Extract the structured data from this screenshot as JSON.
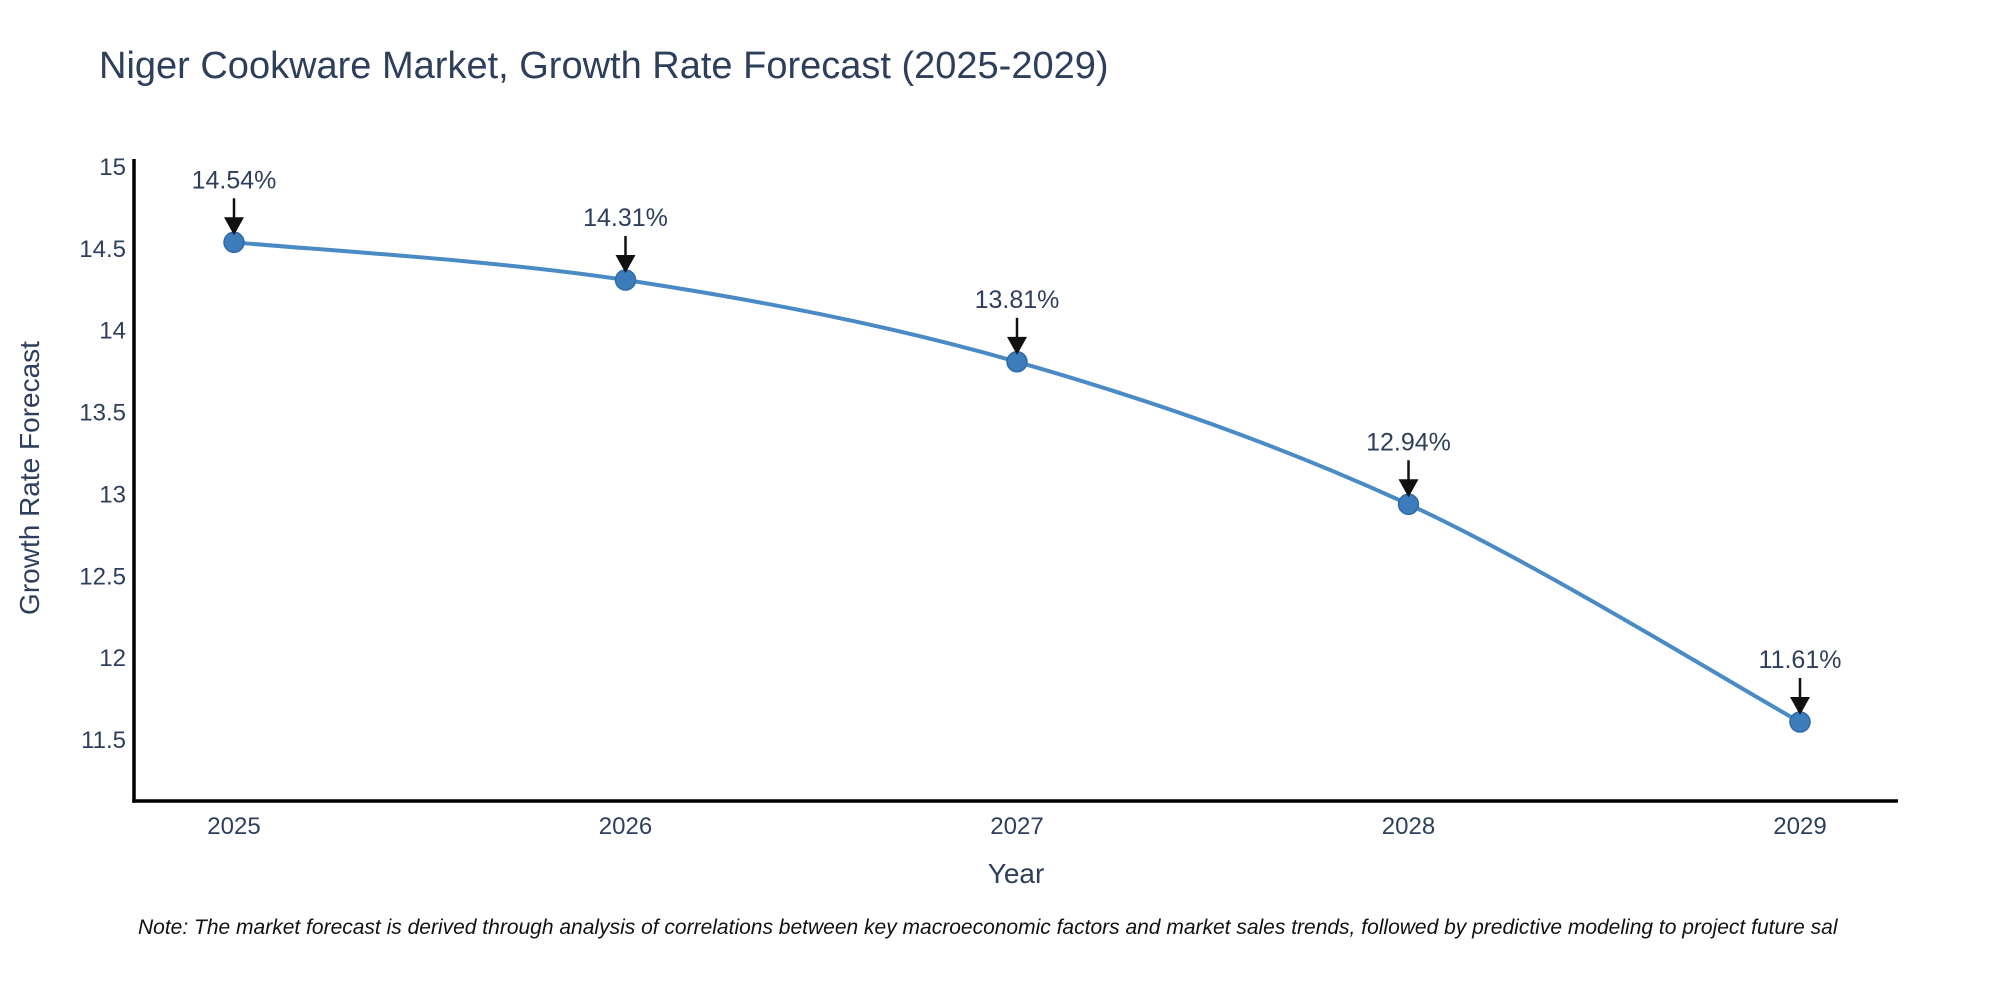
{
  "header": {
    "title": "Niger Cookware Market, Growth Rate Forecast (2025-2029)"
  },
  "chart_data": {
    "type": "line",
    "title": "Niger Cookware Market, Growth Rate Forecast (2025-2029)",
    "x": [
      2025,
      2026,
      2027,
      2028,
      2029
    ],
    "series": [
      {
        "name": "Growth Rate Forecast",
        "values": [
          14.54,
          14.31,
          13.81,
          12.94,
          11.61
        ]
      }
    ],
    "y": [
      14.54,
      14.31,
      13.81,
      12.94,
      11.61
    ],
    "point_labels": [
      "14.54%",
      "14.31%",
      "13.81%",
      "12.94%",
      "11.61%"
    ],
    "xlabel": "Year",
    "ylabel": "Growth Rate Forecast",
    "xtick_labels": [
      "2025",
      "2026",
      "2027",
      "2028",
      "2029"
    ],
    "yticks": [
      15,
      14.5,
      14,
      13.5,
      13,
      12.5,
      12,
      11.5
    ],
    "ytick_labels": [
      "15",
      "14.5",
      "14",
      "13.5",
      "13",
      "12.5",
      "12",
      "11.5"
    ],
    "ylim": [
      11.13,
      15.05
    ],
    "grid": false,
    "legend": "none",
    "line_shape": "spline",
    "line_color": "#4a8ac5",
    "marker_color": "#3d7cba",
    "marker_edge": "#2f6ba8",
    "axis_color": "#000000",
    "arrow_color": "#111111",
    "text_color": "#2e3f5c"
  },
  "footnote": {
    "text": "Note: The market forecast is derived through analysis of correlations between key macroeconomic factors and market sales trends, followed by predictive modeling to project future sal"
  }
}
